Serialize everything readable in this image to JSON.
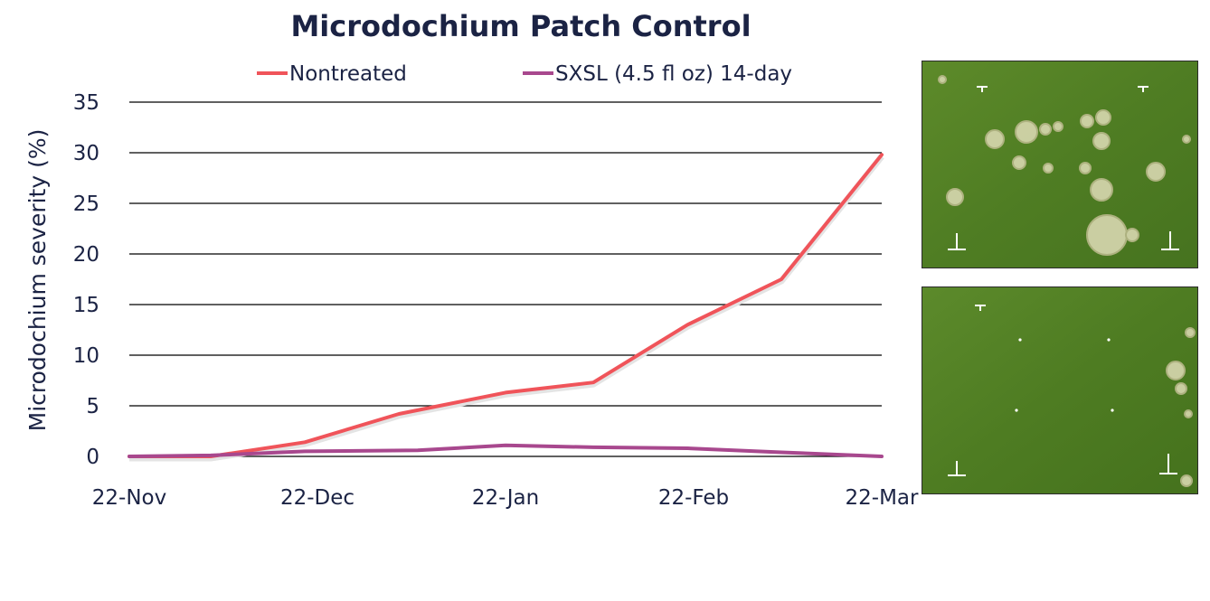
{
  "chart_data": {
    "type": "line",
    "title": "Microdochium Patch Control",
    "ylabel": "Microdochium severity (%)",
    "xlabel": "",
    "x_ticks": [
      "22-Nov",
      "22-Dec",
      "22-Jan",
      "22-Feb",
      "22-Mar"
    ],
    "y_ticks": [
      "0",
      "5",
      "10",
      "15",
      "20",
      "25",
      "30",
      "35"
    ],
    "ylim": [
      0,
      35
    ],
    "x_unit": "days from 22-Nov",
    "x_range": [
      0,
      120
    ],
    "grid": "horizontal",
    "legend_position": "top",
    "series": [
      {
        "name": "Nontreated",
        "color": "#f0545a",
        "x": [
          0,
          13,
          28,
          43,
          60,
          74,
          89,
          104,
          120
        ],
        "y": [
          0,
          0,
          1.4,
          4.2,
          6.3,
          7.3,
          13.0,
          17.5,
          29.8
        ]
      },
      {
        "name": "SXSL (4.5 fl oz) 14-day",
        "color": "#a8488e",
        "x": [
          0,
          13,
          28,
          46,
          60,
          74,
          89,
          104,
          120
        ],
        "y": [
          0,
          0.1,
          0.5,
          0.6,
          1.1,
          0.9,
          0.8,
          0.4,
          0.0
        ]
      }
    ]
  },
  "photos": [
    {
      "icon": "turf-plot-photo-diseased"
    },
    {
      "icon": "turf-plot-photo-treated"
    }
  ]
}
